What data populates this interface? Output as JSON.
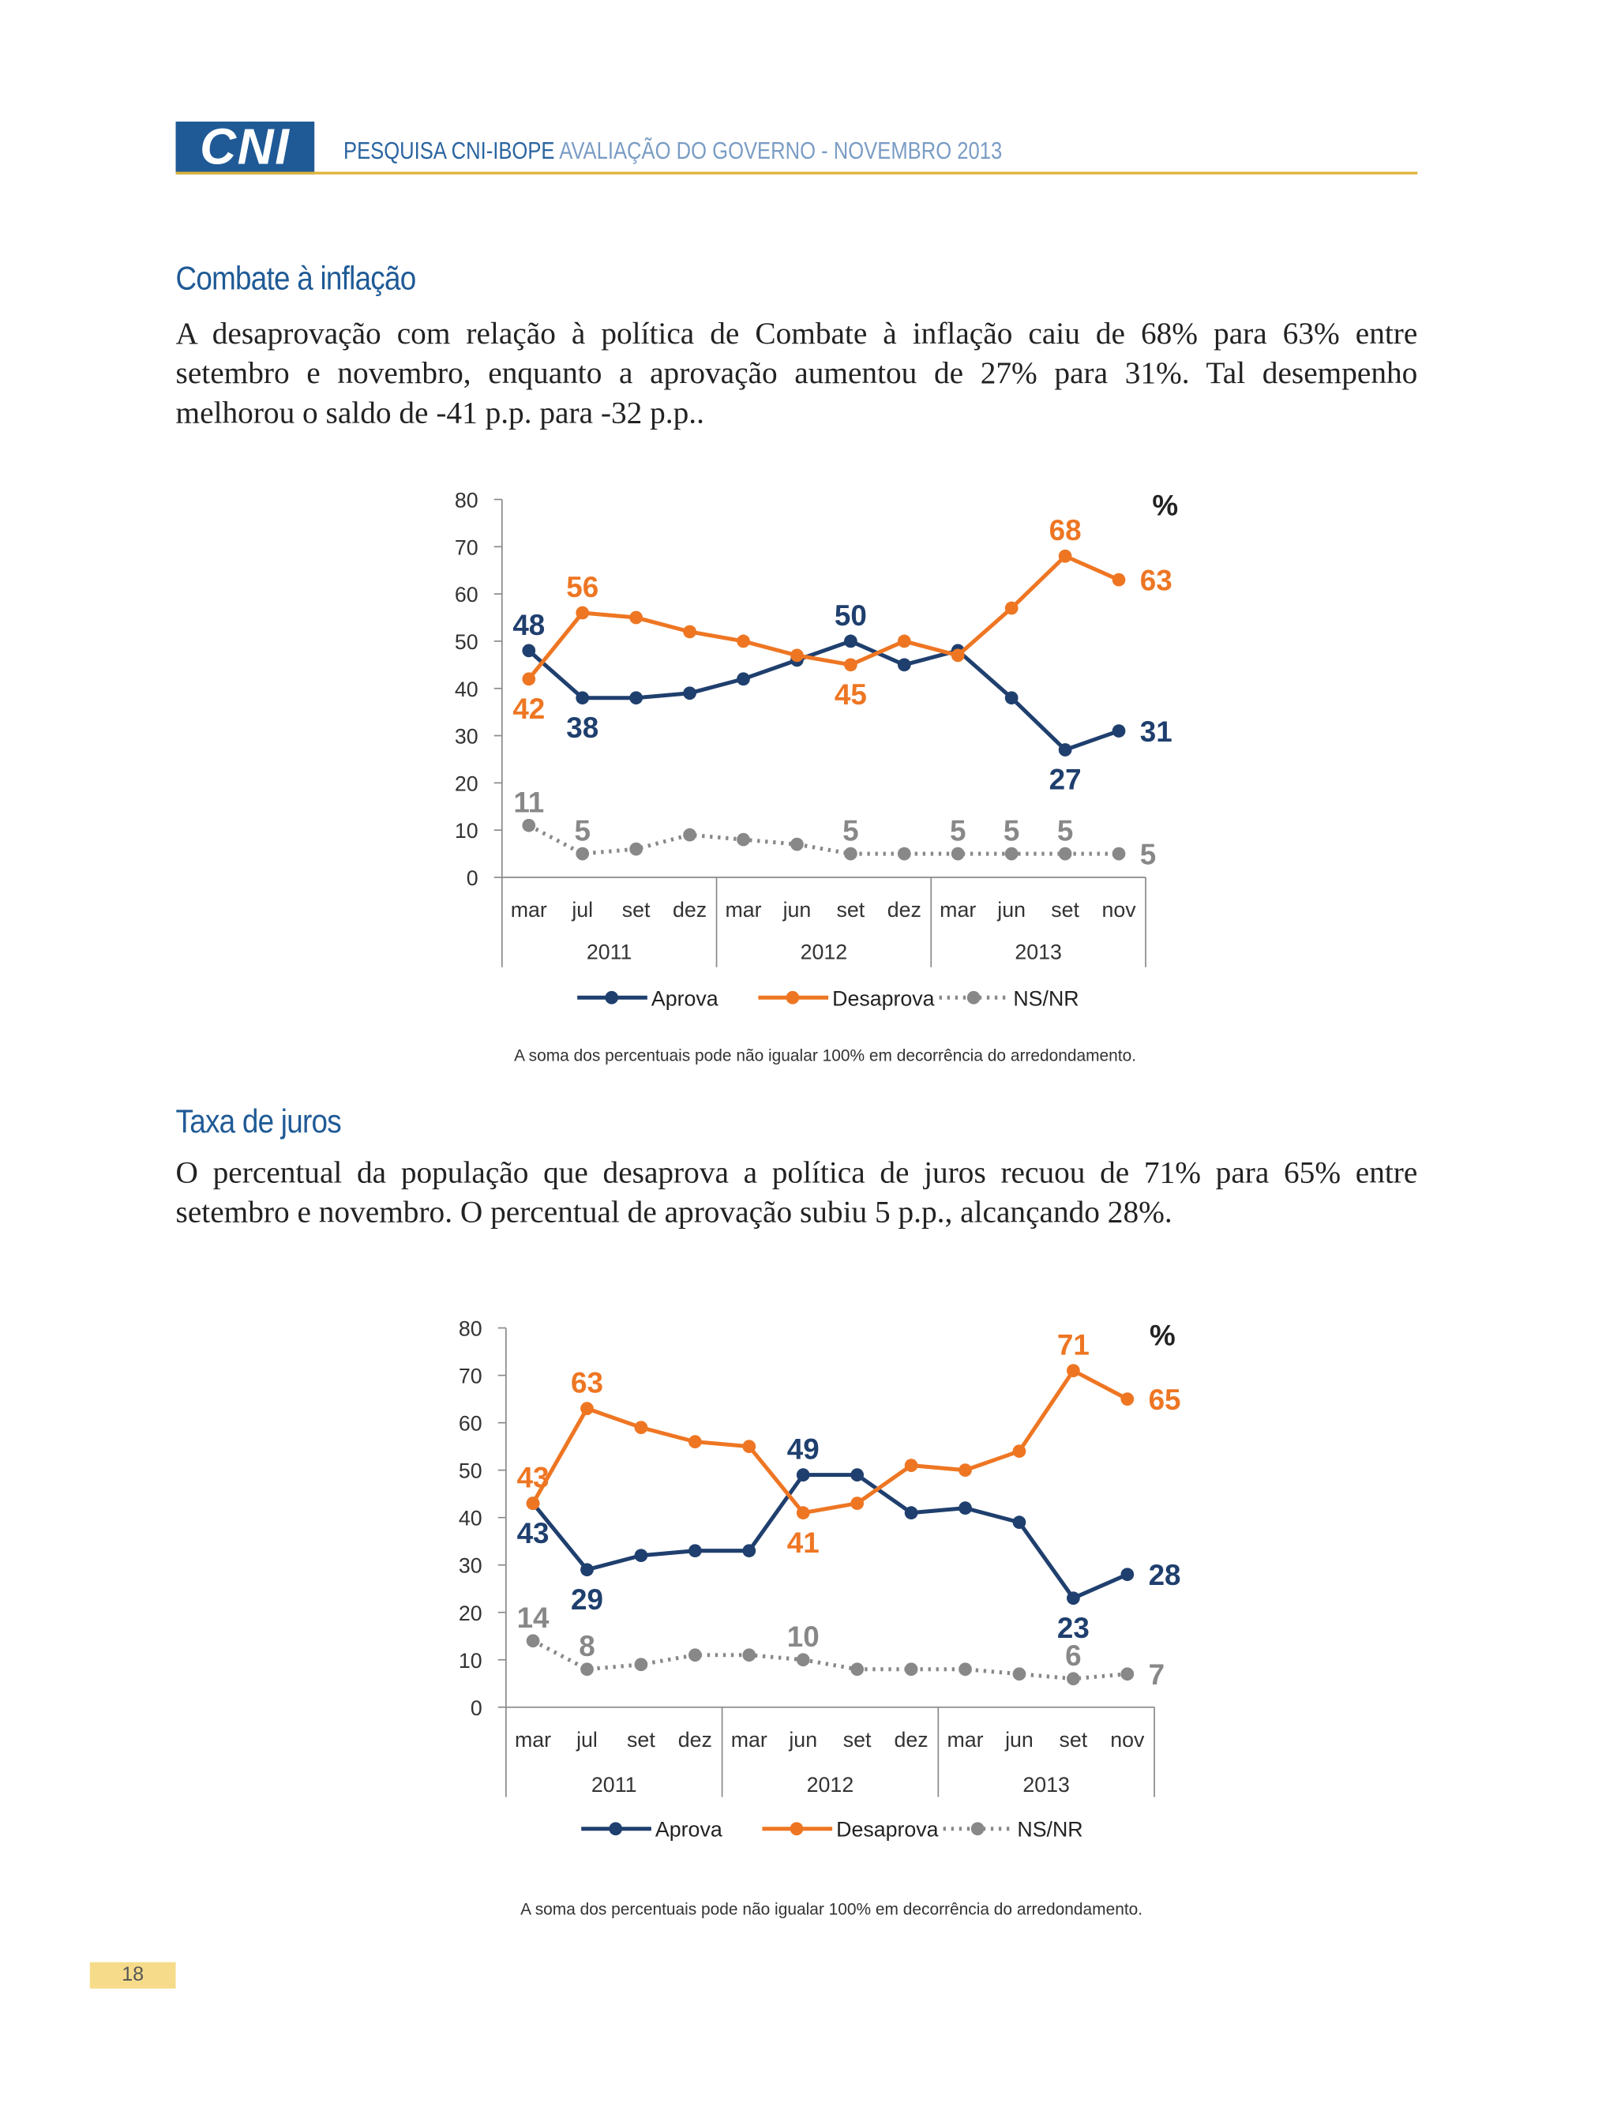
{
  "header": {
    "logo": "CNI",
    "title": "PESQUISA CNI-IBOPE",
    "subtitle": "AVALIAÇÃO DO GOVERNO - NOVEMBRO 2013"
  },
  "sections": [
    {
      "heading": "Combate à inflação",
      "text": "A desaprovação com relação à política de Combate à inflação caiu de 68% para 63% entre setembro e novembro, enquanto a aprovação aumentou de 27% para 31%. Tal desempenho melhorou o saldo de -41 p.p. para -32 p.p.."
    },
    {
      "heading": "Taxa de juros",
      "text": "O percentual da população que desaprova a política de juros recuou de 71% para 65% entre setembro e novembro. O percentual de aprovação subiu 5 p.p., alcançando 28%."
    }
  ],
  "chart_data": [
    {
      "type": "line",
      "unit": "%",
      "categories": [
        "mar",
        "jul",
        "set",
        "dez",
        "mar",
        "jun",
        "set",
        "dez",
        "mar",
        "jun",
        "set",
        "nov"
      ],
      "groups": [
        "2011",
        "2012",
        "2013"
      ],
      "ylim": [
        0,
        80
      ],
      "yticks": [
        0,
        10,
        20,
        30,
        40,
        50,
        60,
        70,
        80
      ],
      "series": [
        {
          "name": "Aprova",
          "color": "#1f3f6e",
          "style": "solid",
          "values": [
            48,
            38,
            38,
            39,
            42,
            46,
            50,
            45,
            48,
            38,
            27,
            31
          ],
          "value_labels": [
            "48",
            "38",
            null,
            null,
            null,
            null,
            "50",
            null,
            null,
            null,
            "27",
            "31"
          ]
        },
        {
          "name": "Desaprova",
          "color": "#ee7623",
          "style": "solid",
          "values": [
            42,
            56,
            55,
            52,
            50,
            47,
            45,
            50,
            47,
            57,
            68,
            63
          ],
          "value_labels": [
            "42",
            "56",
            null,
            null,
            null,
            null,
            "45",
            null,
            null,
            null,
            "68",
            "63"
          ]
        },
        {
          "name": "NS/NR",
          "color": "#888888",
          "style": "dotted",
          "values": [
            11,
            5,
            6,
            9,
            8,
            7,
            5,
            5,
            5,
            5,
            5,
            5
          ],
          "value_labels": [
            "11",
            "5",
            null,
            null,
            null,
            null,
            "5",
            null,
            "5",
            "5",
            "5",
            "5"
          ]
        }
      ],
      "note": "A soma dos percentuais pode não igualar 100% em decorrência do arredondamento."
    },
    {
      "type": "line",
      "unit": "%",
      "categories": [
        "mar",
        "jul",
        "set",
        "dez",
        "mar",
        "jun",
        "set",
        "dez",
        "mar",
        "jun",
        "set",
        "nov"
      ],
      "groups": [
        "2011",
        "2012",
        "2013"
      ],
      "ylim": [
        0,
        80
      ],
      "yticks": [
        0,
        10,
        20,
        30,
        40,
        50,
        60,
        70,
        80
      ],
      "series": [
        {
          "name": "Aprova",
          "color": "#1f3f6e",
          "style": "solid",
          "values": [
            43,
            29,
            32,
            33,
            33,
            49,
            49,
            41,
            42,
            39,
            23,
            28
          ],
          "value_labels": [
            "43",
            "29",
            null,
            null,
            null,
            "49",
            null,
            null,
            null,
            null,
            "23",
            "28"
          ]
        },
        {
          "name": "Desaprova",
          "color": "#ee7623",
          "style": "solid",
          "values": [
            43,
            63,
            59,
            56,
            55,
            41,
            43,
            51,
            50,
            54,
            71,
            65
          ],
          "value_labels": [
            "43",
            "63",
            null,
            null,
            null,
            "41",
            null,
            null,
            null,
            null,
            "71",
            "65"
          ]
        },
        {
          "name": "NS/NR",
          "color": "#888888",
          "style": "dotted",
          "values": [
            14,
            8,
            9,
            11,
            11,
            10,
            8,
            8,
            8,
            7,
            6,
            7
          ],
          "value_labels": [
            "14",
            "8",
            null,
            null,
            null,
            "10",
            null,
            null,
            null,
            null,
            "6",
            "7"
          ]
        }
      ],
      "note": "A soma dos percentuais pode não igualar 100% em decorrência do arredondamento."
    }
  ],
  "page_number": "18"
}
